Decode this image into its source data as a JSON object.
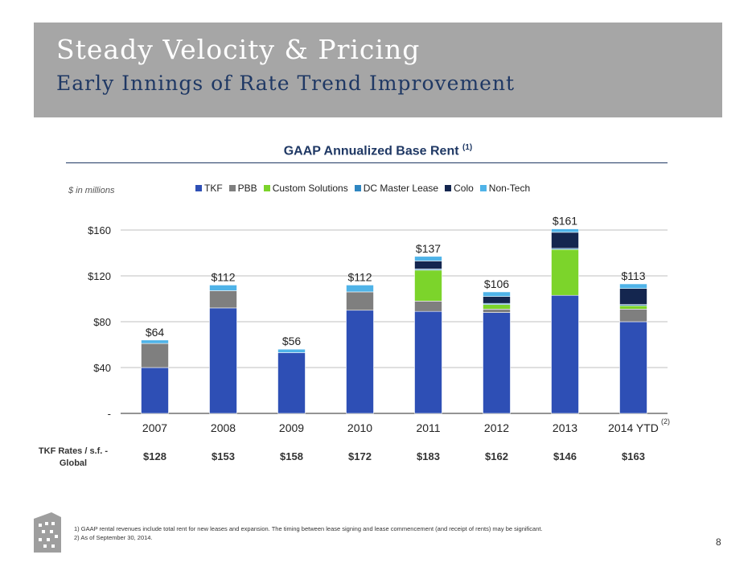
{
  "header": {
    "title": "Steady Velocity & Pricing",
    "subtitle": "Early Innings of Rate Trend Improvement"
  },
  "chart_data": {
    "type": "bar",
    "stacked": true,
    "title": "GAAP Annualized Base Rent",
    "title_note": "(1)",
    "units": "$ in millions",
    "categories": [
      "2007",
      "2008",
      "2009",
      "2010",
      "2011",
      "2012",
      "2013",
      "2014 YTD"
    ],
    "category_note": {
      "2014 YTD": "(2)"
    },
    "ylim": [
      0,
      160
    ],
    "yticks": [
      0,
      40,
      80,
      120,
      160
    ],
    "ytick_labels": [
      "-",
      "$40",
      "$80",
      "$120",
      "$160"
    ],
    "grid": true,
    "legend_position": "top",
    "series": [
      {
        "name": "TKF",
        "color": "#2e4fb5",
        "values": [
          40,
          92,
          53,
          90,
          89,
          88,
          103,
          80
        ]
      },
      {
        "name": "PBB",
        "color": "#7f7f7f",
        "values": [
          21,
          15,
          0,
          16,
          9,
          3,
          0,
          11
        ]
      },
      {
        "name": "Custom Solutions",
        "color": "#7cd42b",
        "values": [
          0,
          0,
          0,
          0,
          27,
          4,
          40,
          3
        ]
      },
      {
        "name": "DC Master Lease",
        "color": "#2e86c1",
        "values": [
          0,
          0,
          0,
          0,
          1,
          1,
          1,
          1
        ]
      },
      {
        "name": "Colo",
        "color": "#14264f",
        "values": [
          0,
          0,
          0,
          0,
          7,
          6,
          14,
          14
        ]
      },
      {
        "name": "Non-Tech",
        "color": "#4fb3e8",
        "values": [
          3,
          5,
          3,
          6,
          4,
          4,
          3,
          4
        ]
      }
    ],
    "totals": [
      64,
      112,
      56,
      112,
      137,
      106,
      161,
      113
    ],
    "total_labels": [
      "$64",
      "$112",
      "$56",
      "$112",
      "$137",
      "$106",
      "$161",
      "$113"
    ]
  },
  "rates": {
    "label": "TKF Rates / s.f. - Global",
    "values": [
      "$128",
      "$153",
      "$158",
      "$172",
      "$183",
      "$162",
      "$146",
      "$163"
    ]
  },
  "footnotes": {
    "note1": "1)   GAAP rental revenues include total rent for new leases and expansion. The timing between lease signing and lease commencement (and receipt of rents) may be significant.",
    "note2": "2)   As of September 30, 2014."
  },
  "page_number": "8"
}
